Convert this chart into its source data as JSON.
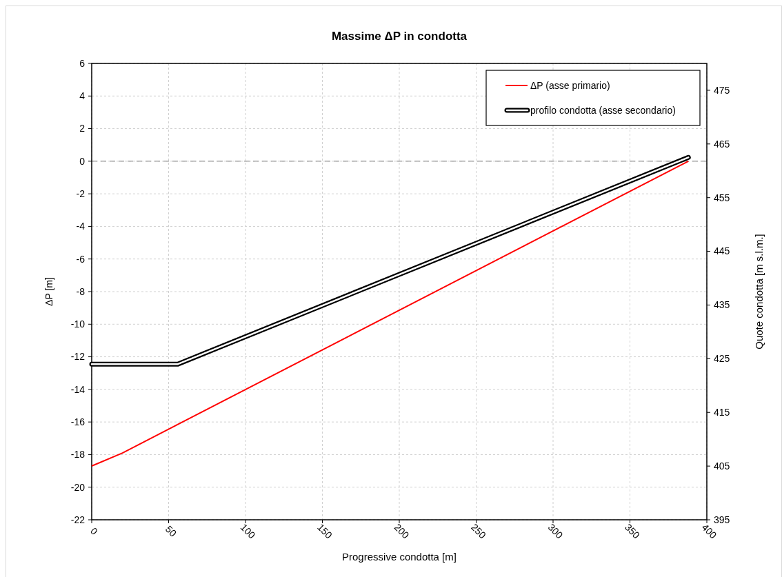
{
  "chart_data": {
    "type": "line",
    "title": "Massime ΔP in condotta",
    "xlabel": "Progressive condotta [m]",
    "ylabel": "ΔP [m]",
    "y2label": "Quote condotta [m s.l.m.]",
    "xlim": [
      0,
      400
    ],
    "xticks": [
      0,
      50,
      100,
      150,
      200,
      250,
      300,
      350,
      400
    ],
    "ylim": [
      -22,
      6
    ],
    "yticks": [
      -22,
      -20,
      -18,
      -16,
      -14,
      -12,
      -10,
      -8,
      -6,
      -4,
      -2,
      0,
      2,
      4,
      6
    ],
    "y2lim": [
      395,
      480
    ],
    "y2ticks": [
      395,
      405,
      415,
      425,
      435,
      445,
      455,
      465,
      475
    ],
    "grid": true,
    "legend": "top right",
    "line_style": "solid",
    "marker": "none",
    "ref_lines": [
      {
        "axis": "y",
        "value": 0,
        "color": "#a6a6a6",
        "line_style": "dashed"
      }
    ],
    "series": [
      {
        "name": "ΔP (asse primario)",
        "color": "#ff0000",
        "x": [
          0,
          20,
          388
        ],
        "values": [
          -18.7,
          -17.9,
          0
        ]
      },
      {
        "name": "profilo condotta (asse secondario)",
        "color": "#000000",
        "axis": "y2",
        "x": [
          0,
          56,
          388
        ],
        "values": [
          424,
          424,
          462.5
        ]
      }
    ]
  }
}
